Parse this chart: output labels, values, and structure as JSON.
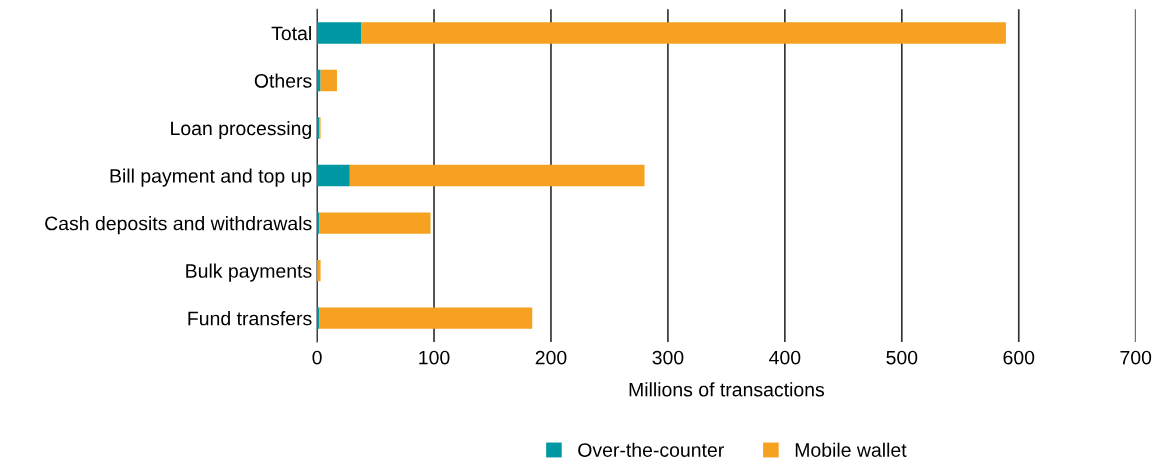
{
  "chart_data": {
    "type": "bar",
    "orientation": "horizontal",
    "stacked": true,
    "categories": [
      "Total",
      "Others",
      "Loan processing",
      "Bill payment and top up",
      "Cash deposits and withdrawals",
      "Bulk payments",
      "Fund transfers"
    ],
    "series": [
      {
        "name": "Over-the-counter",
        "color": "#0098a3",
        "values": [
          38,
          3,
          2,
          28,
          2,
          0,
          2
        ]
      },
      {
        "name": "Mobile wallet",
        "color": "#f6a11f",
        "values": [
          551,
          14,
          1,
          252,
          95,
          3,
          182
        ]
      }
    ],
    "xlim": [
      0,
      700
    ],
    "xticks": [
      0,
      100,
      200,
      300,
      400,
      500,
      600,
      700
    ],
    "xlabel": "Millions of transactions",
    "grid": "x",
    "legend": "bottom"
  }
}
